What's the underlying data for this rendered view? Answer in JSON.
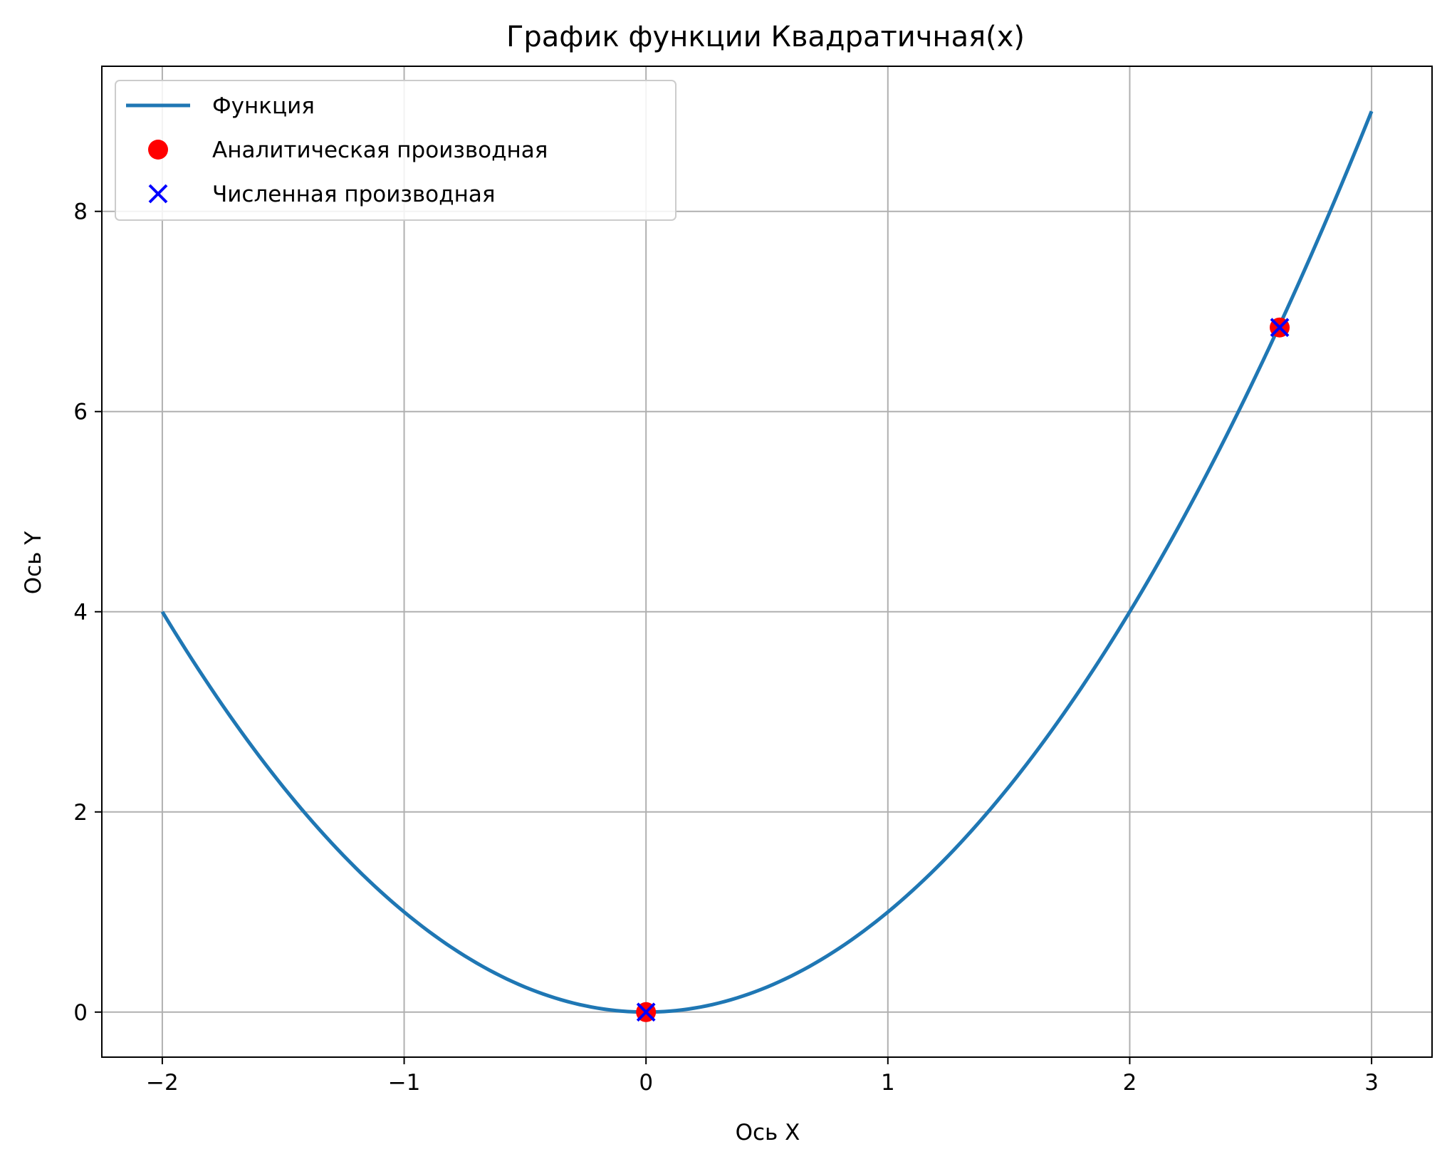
{
  "chart_data": {
    "type": "line",
    "title": "График функции Квадратичная(x)",
    "xlabel": "Ось X",
    "ylabel": "Ось Y",
    "xlim": [
      -2.25,
      3.25
    ],
    "ylim": [
      -0.45,
      9.45
    ],
    "x_ticks": [
      -2,
      -1,
      0,
      1,
      2,
      3
    ],
    "x_tick_labels": [
      "−2",
      "−1",
      "0",
      "1",
      "2",
      "3"
    ],
    "y_ticks": [
      0,
      2,
      4,
      6,
      8
    ],
    "y_tick_labels": [
      "0",
      "2",
      "4",
      "6",
      "8"
    ],
    "grid": true,
    "legend_position": "upper-left",
    "series": [
      {
        "name": "Функция",
        "kind": "line",
        "color": "#1f77b4",
        "function": "x^2",
        "x_range": [
          -2,
          3
        ]
      },
      {
        "name": "Аналитическая производная",
        "kind": "scatter",
        "marker": "circle",
        "color": "#ff0000",
        "points": [
          [
            0,
            0
          ],
          [
            2.62,
            6.84
          ]
        ]
      },
      {
        "name": "Численная производная",
        "kind": "scatter",
        "marker": "x",
        "color": "#0000ff",
        "points": [
          [
            0,
            0
          ],
          [
            2.62,
            6.84
          ]
        ]
      }
    ]
  }
}
